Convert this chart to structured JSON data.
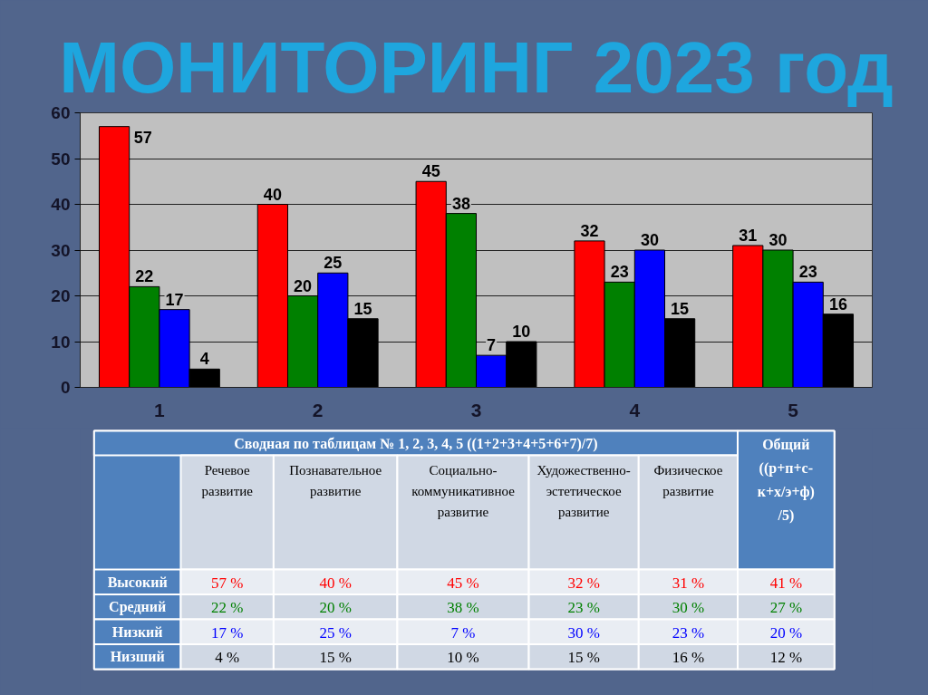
{
  "chart_data": {
    "type": "bar",
    "title": "МОНИТОРИНГ 2023 год",
    "categories": [
      "1",
      "2",
      "3",
      "4",
      "5"
    ],
    "series": [
      {
        "color": "#ff0000",
        "values": [
          57,
          40,
          45,
          32,
          31
        ]
      },
      {
        "color": "#008000",
        "values": [
          22,
          20,
          38,
          23,
          30
        ]
      },
      {
        "color": "#0000ff",
        "values": [
          17,
          25,
          7,
          30,
          23
        ]
      },
      {
        "color": "#000000",
        "values": [
          4,
          15,
          10,
          15,
          16
        ]
      }
    ],
    "ylim": [
      0,
      60
    ],
    "yticks": [
      0,
      10,
      20,
      30,
      40,
      50,
      60
    ],
    "grid": "y",
    "data_labels": true,
    "annotations": [
      "Сводная по таблицам № 1, 2, 3, 4, 5 ((1+2+3+4+5+6+7)/7)",
      "Общий ((р+п+с-к+х/э+ф) /5)",
      "Речевое развитие",
      "Познавательное развитие",
      "Социально-коммуникативное развитие",
      "Художественно-эстетическое развитие",
      "Физическое развитие",
      "Высокий",
      "57 %",
      "40 %",
      "45 %",
      "32 %",
      "31 %",
      "41 %",
      "Средний",
      "22 %",
      "20 %",
      "38 %",
      "23 %",
      "30 %",
      "27 %",
      "Низкий",
      "17 %",
      "25 %",
      "7 %",
      "30 %",
      "23 %",
      "20 %",
      "Низший",
      "4 %",
      "15 %",
      "10 %",
      "15 %",
      "16 %",
      "12 %"
    ]
  }
}
